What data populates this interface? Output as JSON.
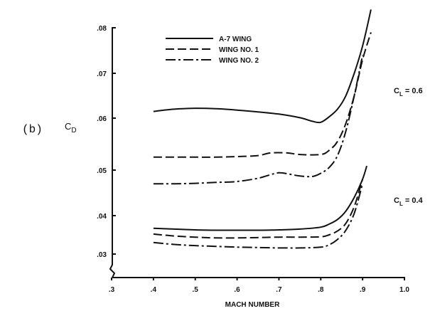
{
  "panel_label": "(b)",
  "chart_data": {
    "type": "line",
    "title": "",
    "xlabel": "MACH NUMBER",
    "ylabel_main": "C",
    "ylabel_sub": "D",
    "xlim": [
      0.3,
      1.0
    ],
    "ylim": [
      0.028,
      0.08
    ],
    "x_ticks": [
      0.3,
      0.4,
      0.5,
      0.6,
      0.7,
      0.8,
      0.9,
      1.0
    ],
    "x_tick_labels": [
      ".3",
      ".4",
      ".5",
      ".6",
      ".7",
      ".8",
      ".9",
      "1.0"
    ],
    "y_ticks": [
      0.03,
      0.04,
      0.05,
      0.06,
      0.07,
      0.08
    ],
    "y_tick_labels": [
      ".03",
      ".04",
      ".05",
      ".06",
      ".07",
      ".08"
    ],
    "grid": false,
    "legend_position": "top-left",
    "legend": [
      {
        "label": "A-7 WING",
        "dash": "solid"
      },
      {
        "label": "WING NO. 1",
        "dash": "dashed"
      },
      {
        "label": "WING NO. 2",
        "dash": "dash-dot"
      }
    ],
    "annotations": [
      {
        "text_main": "C",
        "text_sub": "L",
        "text_rest": " = 0.6",
        "x": 0.96,
        "y": 0.0625
      },
      {
        "text_main": "C",
        "text_sub": "L",
        "text_rest": " = 0.4",
        "x": 0.96,
        "y": 0.0395
      }
    ],
    "series": [
      {
        "group": "CL = 0.6",
        "legend_index": 0,
        "dash": "solid",
        "x": [
          0.4,
          0.45,
          0.5,
          0.55,
          0.6,
          0.65,
          0.7,
          0.75,
          0.78,
          0.8,
          0.82,
          0.84,
          0.86,
          0.88,
          0.9,
          0.92
        ],
        "y": [
          0.0615,
          0.062,
          0.0622,
          0.0621,
          0.0618,
          0.0614,
          0.0609,
          0.0601,
          0.0594,
          0.0592,
          0.0603,
          0.062,
          0.065,
          0.07,
          0.076,
          0.084
        ]
      },
      {
        "group": "CL = 0.6",
        "legend_index": 1,
        "dash": "dashed",
        "x": [
          0.4,
          0.45,
          0.5,
          0.55,
          0.6,
          0.65,
          0.68,
          0.72,
          0.75,
          0.8,
          0.82,
          0.84,
          0.86,
          0.88,
          0.9,
          0.92
        ],
        "y": [
          0.0525,
          0.0525,
          0.0525,
          0.0525,
          0.0526,
          0.0528,
          0.0533,
          0.0533,
          0.053,
          0.053,
          0.0538,
          0.0555,
          0.059,
          0.065,
          0.073,
          0.079
        ]
      },
      {
        "group": "CL = 0.6",
        "legend_index": 2,
        "dash": "dash-dot",
        "x": [
          0.4,
          0.45,
          0.5,
          0.55,
          0.6,
          0.65,
          0.68,
          0.7,
          0.72,
          0.75,
          0.78,
          0.8,
          0.82,
          0.84,
          0.86,
          0.88,
          0.9
        ],
        "y": [
          0.047,
          0.047,
          0.0471,
          0.0473,
          0.0475,
          0.0482,
          0.049,
          0.0494,
          0.0492,
          0.0487,
          0.0486,
          0.0493,
          0.0505,
          0.0528,
          0.0575,
          0.065,
          0.074
        ]
      },
      {
        "group": "CL = 0.4",
        "legend_index": 0,
        "dash": "solid",
        "x": [
          0.4,
          0.45,
          0.5,
          0.55,
          0.6,
          0.65,
          0.7,
          0.75,
          0.8,
          0.82,
          0.84,
          0.86,
          0.88,
          0.9,
          0.91
        ],
        "y": [
          0.0367,
          0.0365,
          0.0363,
          0.0362,
          0.0362,
          0.0362,
          0.0363,
          0.0365,
          0.037,
          0.0378,
          0.039,
          0.041,
          0.044,
          0.048,
          0.0508
        ]
      },
      {
        "group": "CL = 0.4",
        "legend_index": 1,
        "dash": "dashed",
        "x": [
          0.4,
          0.45,
          0.5,
          0.55,
          0.6,
          0.65,
          0.7,
          0.75,
          0.8,
          0.82,
          0.84,
          0.86,
          0.88,
          0.9
        ],
        "y": [
          0.0352,
          0.0347,
          0.0344,
          0.0342,
          0.0342,
          0.0343,
          0.0344,
          0.0344,
          0.0345,
          0.035,
          0.036,
          0.038,
          0.042,
          0.048
        ]
      },
      {
        "group": "CL = 0.4",
        "legend_index": 2,
        "dash": "dash-dot",
        "x": [
          0.4,
          0.45,
          0.5,
          0.55,
          0.6,
          0.65,
          0.7,
          0.75,
          0.8,
          0.82,
          0.84,
          0.86,
          0.88,
          0.9
        ],
        "y": [
          0.033,
          0.0325,
          0.0322,
          0.032,
          0.0318,
          0.0317,
          0.0316,
          0.0316,
          0.0318,
          0.0324,
          0.0338,
          0.0362,
          0.0405,
          0.047
        ]
      }
    ]
  }
}
